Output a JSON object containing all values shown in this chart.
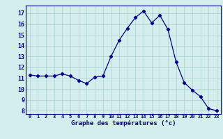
{
  "hours": [
    0,
    1,
    2,
    3,
    4,
    5,
    6,
    7,
    8,
    9,
    10,
    11,
    12,
    13,
    14,
    15,
    16,
    17,
    18,
    19,
    20,
    21,
    22,
    23
  ],
  "temps": [
    11.3,
    11.2,
    11.2,
    11.2,
    11.4,
    11.2,
    10.8,
    10.5,
    11.1,
    11.2,
    13.0,
    14.5,
    15.6,
    16.6,
    17.2,
    16.1,
    16.8,
    15.5,
    12.5,
    10.6,
    9.9,
    9.3,
    8.2,
    8.0
  ],
  "xlabel": "Graphe des températures (°c)",
  "ylim": [
    7.7,
    17.7
  ],
  "xlim": [
    -0.5,
    23.5
  ],
  "line_color": "#00008B",
  "marker": "D",
  "marker_size": 2.2,
  "bg_color": "#d4eeed",
  "grid_color": "#aacfcf",
  "axis_label_color": "#00008B",
  "tick_label_color": "#00008B",
  "yticks": [
    8,
    9,
    10,
    11,
    12,
    13,
    14,
    15,
    16,
    17
  ],
  "xtick_labels": [
    "0",
    "1",
    "2",
    "3",
    "4",
    "5",
    "6",
    "7",
    "8",
    "9",
    "10",
    "11",
    "12",
    "13",
    "14",
    "15",
    "16",
    "17",
    "18",
    "19",
    "20",
    "21",
    "22",
    "23"
  ]
}
